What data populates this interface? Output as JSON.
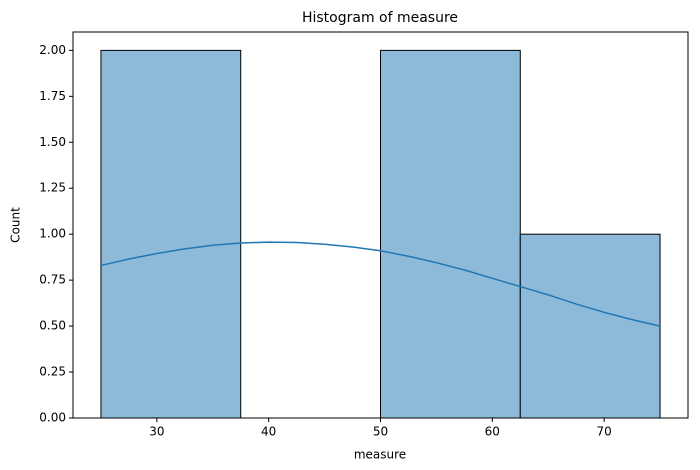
{
  "chart_data": {
    "type": "histogram",
    "title": "Histogram of measure",
    "x_label": "measure",
    "y_label": "Count",
    "bins": [
      25,
      37.5,
      50,
      62.5,
      75
    ],
    "values": [
      2,
      0,
      2,
      1
    ],
    "color": "#8ebad9",
    "edge_color": "#000000",
    "kde": {
      "color": "#1f77b4",
      "x": [
        25,
        27.5,
        30,
        32.5,
        35,
        37.5,
        40,
        42.5,
        45,
        47.5,
        50,
        52.5,
        55,
        57.5,
        60,
        62.5,
        65,
        67.5,
        70,
        72.5,
        75
      ],
      "values": [
        0.83,
        0.865,
        0.895,
        0.92,
        0.94,
        0.952,
        0.957,
        0.955,
        0.945,
        0.93,
        0.91,
        0.88,
        0.845,
        0.805,
        0.76,
        0.715,
        0.67,
        0.62,
        0.575,
        0.535,
        0.5
      ]
    },
    "xlim": [
      22.5,
      77.5
    ],
    "xticks": [
      30,
      40,
      50,
      60,
      70
    ],
    "ylim": [
      0,
      2.1
    ],
    "yticks": [
      {
        "value": 0,
        "label": "0.00"
      },
      {
        "value": 0.25,
        "label": "0.25"
      },
      {
        "value": 0.5,
        "label": "0.50"
      },
      {
        "value": 0.75,
        "label": "0.75"
      },
      {
        "value": 1,
        "label": "1.00"
      },
      {
        "value": 1.25,
        "label": "1.25"
      },
      {
        "value": 1.5,
        "label": "1.50"
      },
      {
        "value": 1.75,
        "label": "1.75"
      },
      {
        "value": 2,
        "label": "2.00"
      }
    ]
  }
}
